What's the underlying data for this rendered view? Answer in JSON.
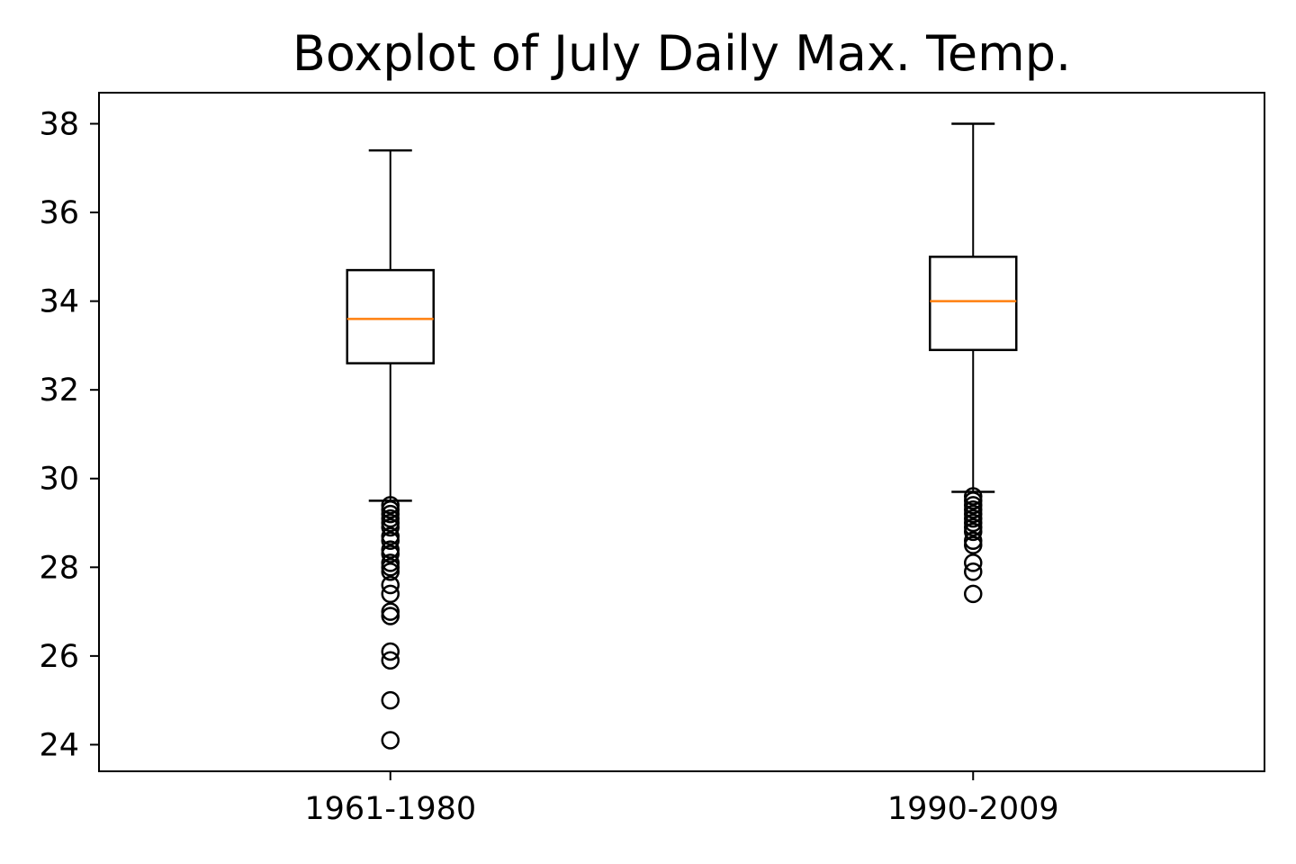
{
  "chart_data": {
    "type": "boxplot",
    "title": "Boxplot of July Daily Max. Temp.",
    "xlabel": "",
    "ylabel": "",
    "ylim": [
      23.4,
      38.7
    ],
    "yticks": [
      24,
      26,
      28,
      30,
      32,
      34,
      36,
      38
    ],
    "categories": [
      "1961-1980",
      "1990-2009"
    ],
    "boxes": [
      {
        "category": "1961-1980",
        "whisker_low": 29.5,
        "q1": 32.6,
        "median": 33.6,
        "q3": 34.7,
        "whisker_high": 37.4,
        "outliers": [
          29.4,
          29.3,
          29.2,
          29.1,
          29.0,
          28.9,
          28.7,
          28.6,
          28.4,
          28.3,
          28.1,
          28.0,
          27.9,
          27.6,
          27.4,
          27.0,
          26.9,
          26.1,
          25.9,
          25.0,
          24.1
        ]
      },
      {
        "category": "1990-2009",
        "whisker_low": 29.7,
        "q1": 32.9,
        "median": 34.0,
        "q3": 35.0,
        "whisker_high": 38.0,
        "outliers": [
          29.6,
          29.5,
          29.4,
          29.3,
          29.2,
          29.1,
          29.0,
          28.9,
          28.8,
          28.6,
          28.5,
          28.1,
          27.9,
          27.4
        ]
      }
    ],
    "colors": {
      "box": "#000000",
      "median": "#ff7f0e",
      "outlier": "#000000"
    },
    "grid": false,
    "legend": "none"
  }
}
